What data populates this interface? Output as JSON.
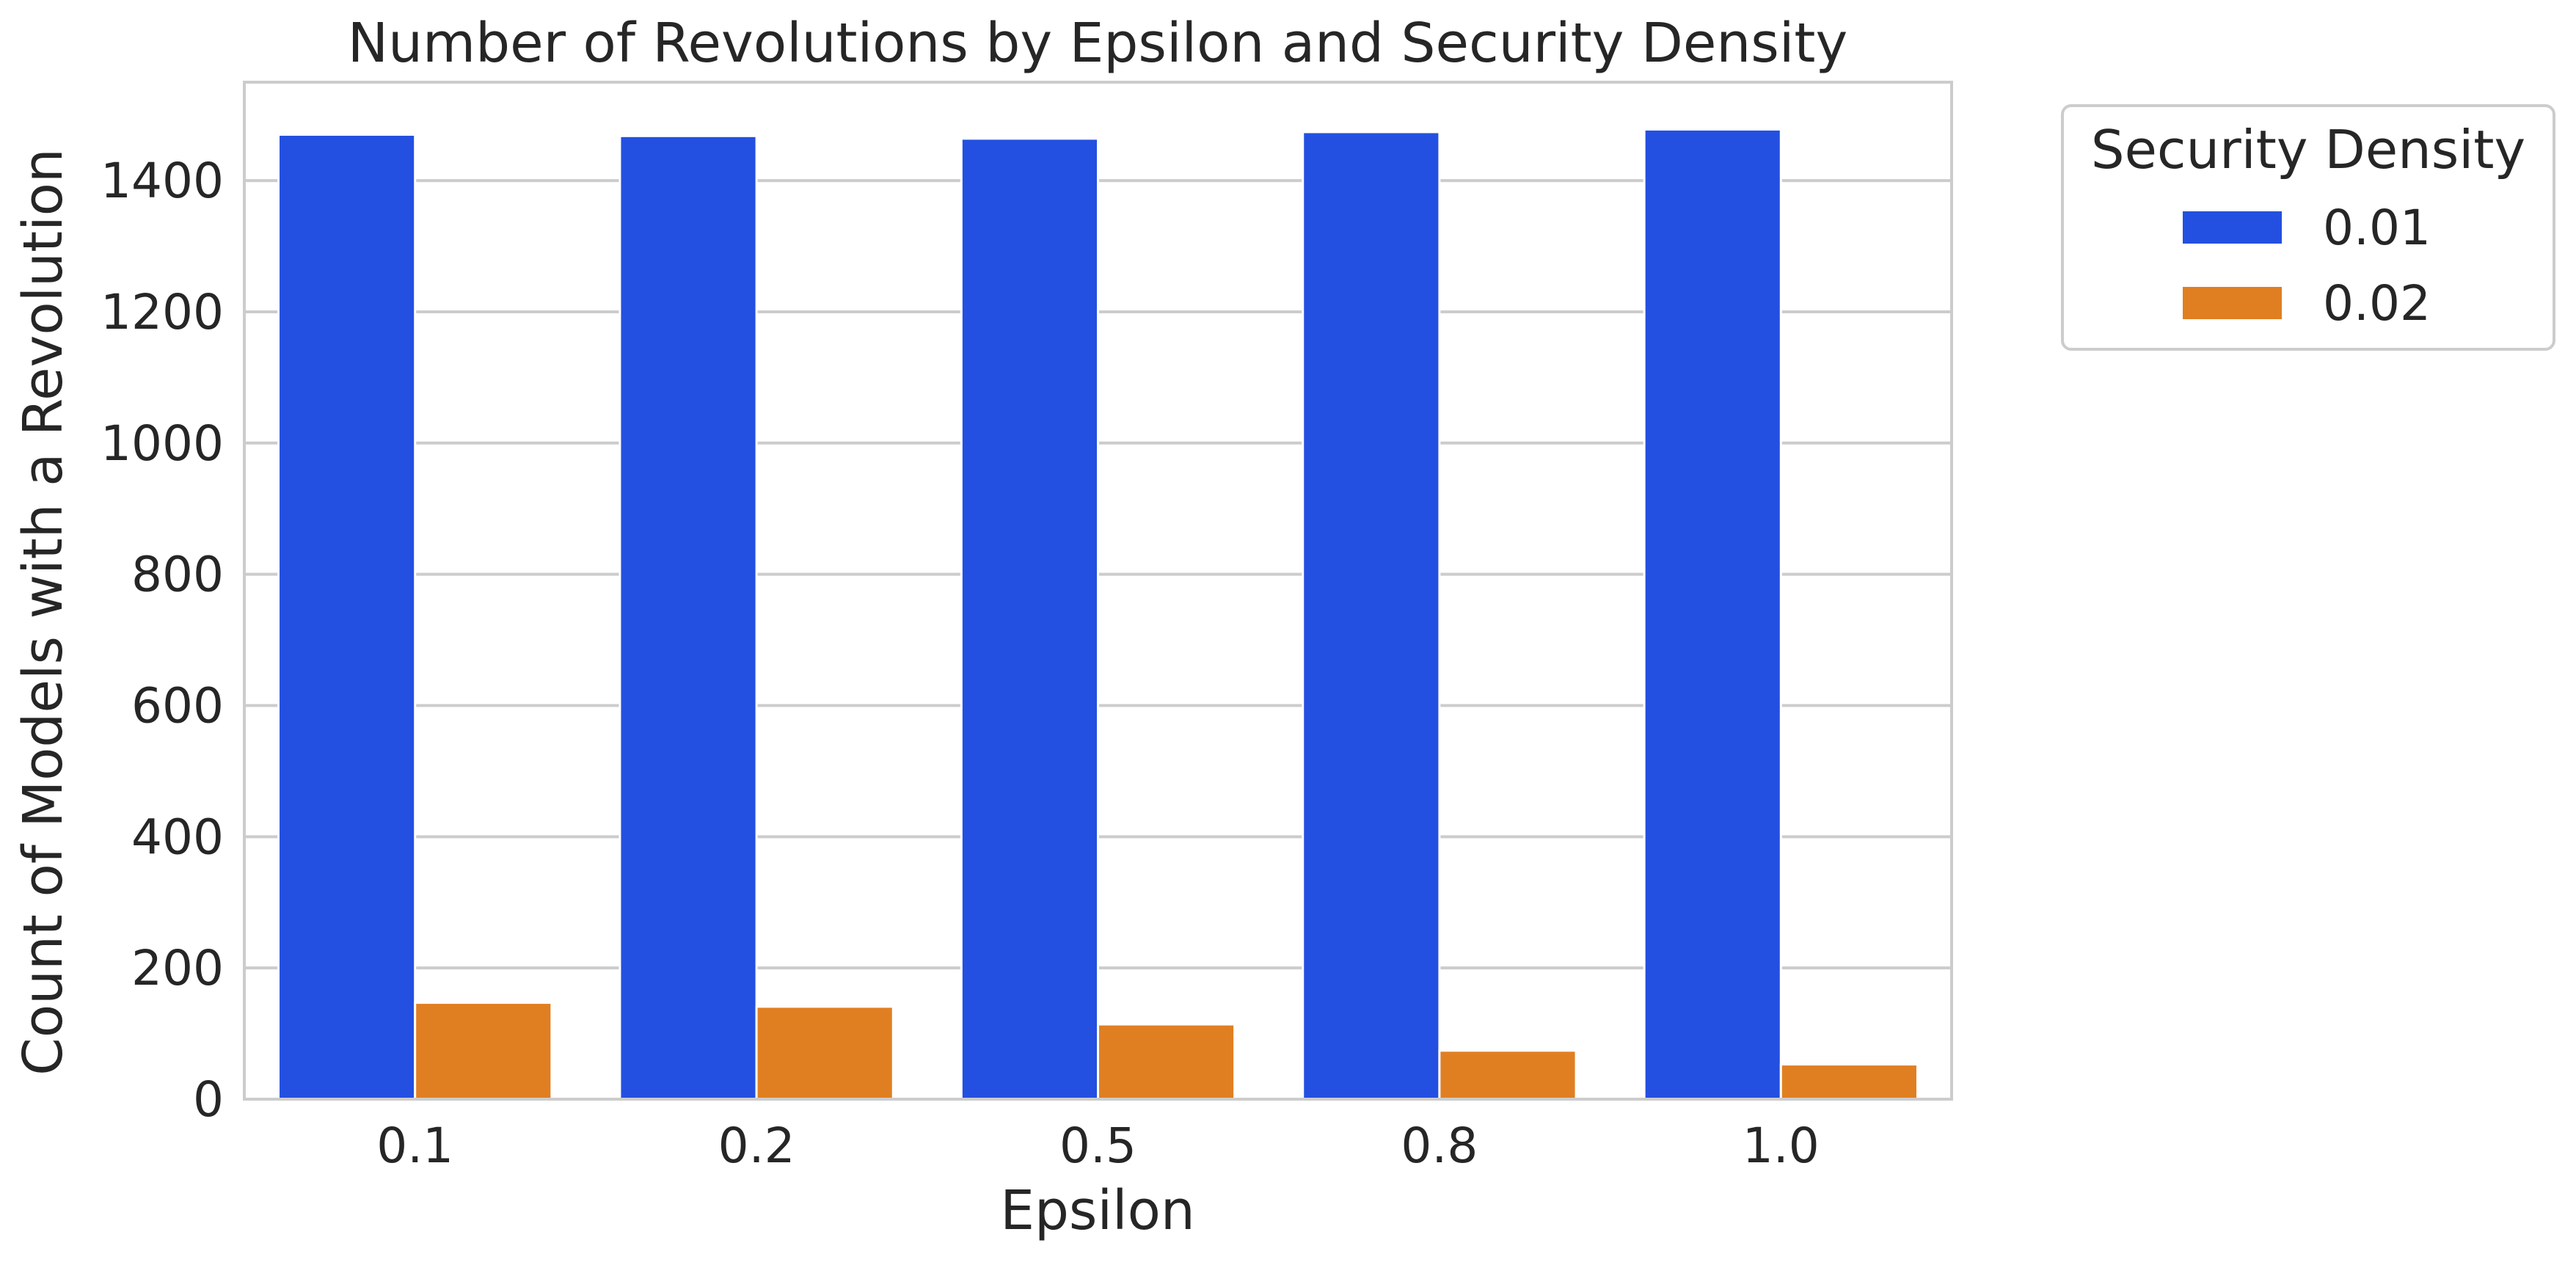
{
  "chart_data": {
    "type": "bar",
    "title": "Number of Revolutions by Epsilon and Security Density",
    "xlabel": "Epsilon",
    "ylabel": "Count of Models with a Revolution",
    "categories": [
      "0.1",
      "0.2",
      "0.5",
      "0.8",
      "1.0"
    ],
    "series": [
      {
        "name": "0.01",
        "color": "#2350e0",
        "values": [
          1470,
          1468,
          1464,
          1474,
          1478
        ]
      },
      {
        "name": "0.02",
        "color": "#e07f22",
        "values": [
          147,
          141,
          114,
          74,
          53
        ]
      }
    ],
    "ylim": [
      0,
      1550
    ],
    "yticks": [
      0,
      200,
      400,
      600,
      800,
      1000,
      1200,
      1400
    ],
    "ytick_labels": [
      "0",
      "200",
      "400",
      "600",
      "800",
      "1000",
      "1200",
      "1400"
    ],
    "grid": "horizontal",
    "legend": {
      "title": "Security Density",
      "placement": "outside-top-right"
    }
  }
}
